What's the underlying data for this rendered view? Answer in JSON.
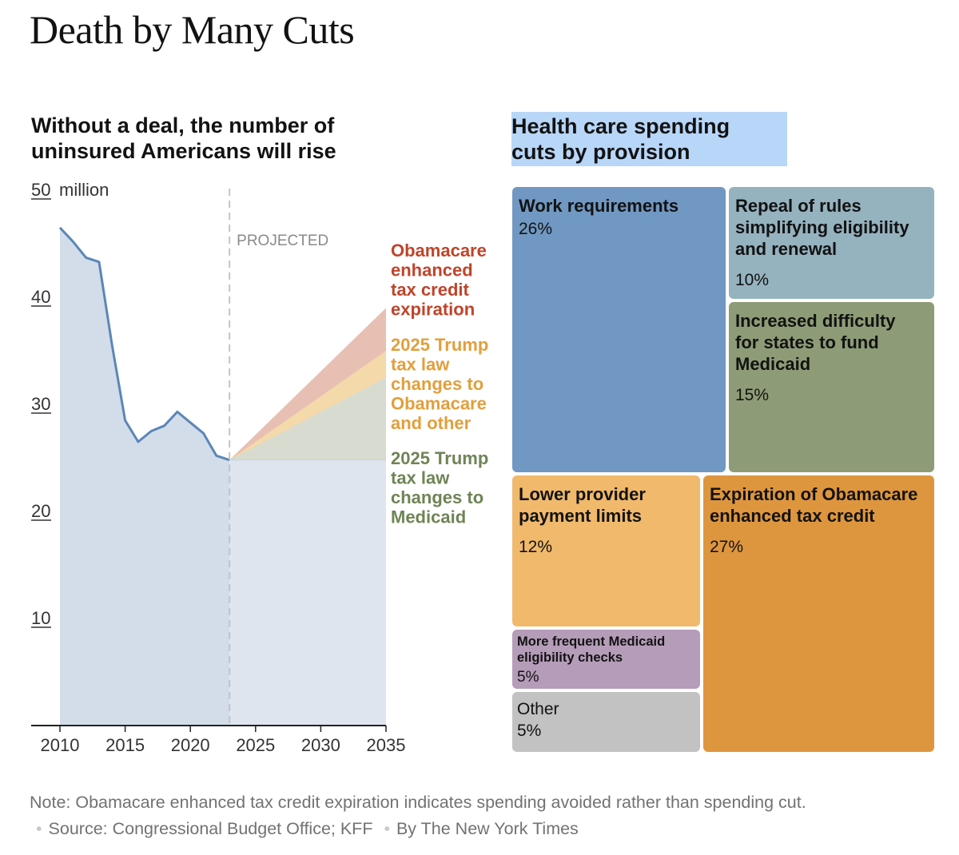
{
  "headline": "Death by Many Cuts",
  "left_title": "Without a deal, the number of uninsured Americans will rise",
  "right_title": [
    "Health care spending",
    "cuts by provision"
  ],
  "colors": {
    "line": "#5b86b8",
    "area_fill": "#d2dde9",
    "projected_fill": "#dee5ef",
    "obamacare_band": "#e8bfb3",
    "trump_obamacare_band": "#f4d9ab",
    "trump_medicaid_band": "#d8dcd0",
    "obamacare_label": "#c0442a",
    "trump_obamacare_label": "#e29f3c",
    "trump_medicaid_label": "#6f8455"
  },
  "chart_data": [
    {
      "type": "area",
      "title": "Without a deal, the number of uninsured Americans will rise",
      "y_unit_label": "million",
      "ylim": [
        0,
        50
      ],
      "y_ticks": [
        10,
        20,
        30,
        40,
        50
      ],
      "xlim": [
        2010,
        2035
      ],
      "x_ticks": [
        2010,
        2015,
        2020,
        2025,
        2030,
        2035
      ],
      "projected_start": 2023,
      "projected_label": "PROJECTED",
      "history": {
        "x": [
          2010,
          2011,
          2012,
          2013,
          2014,
          2015,
          2016,
          2017,
          2018,
          2019,
          2020,
          2021,
          2022,
          2023
        ],
        "y": [
          46.5,
          45.2,
          43.7,
          43.3,
          35.5,
          28.5,
          26.5,
          27.5,
          28.0,
          29.3,
          28.3,
          27.3,
          25.2,
          24.8
        ]
      },
      "projection_bands": [
        {
          "name": "2025 Trump tax law changes to Medicaid",
          "start": 24.8,
          "end": 32.5
        },
        {
          "name": "2025 Trump tax law changes to Obamacare and other",
          "start": 24.8,
          "end": 35.0
        },
        {
          "name": "Obamacare enhanced tax credit expiration",
          "start": 24.8,
          "end": 39.0
        }
      ],
      "annotations": {
        "obamacare": [
          "Obamacare",
          "enhanced",
          "tax credit",
          "expiration"
        ],
        "trump_obamacare": [
          "2025 Trump",
          "tax law",
          "changes to",
          "Obamacare",
          "and other"
        ],
        "trump_medicaid": [
          "2025 Trump",
          "tax law",
          "changes to",
          "Medicaid"
        ]
      }
    },
    {
      "type": "treemap",
      "title": "Health care spending cuts by provision",
      "items": [
        {
          "name": "Work requirements",
          "percent": "26%",
          "value": 26,
          "color": "#7098c2"
        },
        {
          "name": "Repeal of rules simplifying eligibility and renewal",
          "percent": "10%",
          "value": 10,
          "color": "#95b2bf"
        },
        {
          "name": "Increased difficulty for states to fund Medicaid",
          "percent": "15%",
          "value": 15,
          "color": "#8d9c76"
        },
        {
          "name": "Lower provider payment limits",
          "percent": "12%",
          "value": 12,
          "color": "#f0b96b"
        },
        {
          "name": "Expiration of Obamacare enhanced tax credit",
          "percent": "27%",
          "value": 27,
          "color": "#de963e"
        },
        {
          "name": "More frequent Medicaid eligibility checks",
          "percent": "5%",
          "value": 5,
          "color": "#b59cb9"
        },
        {
          "name": "Other",
          "percent": "5%",
          "value": 5,
          "color": "#c2c2c2"
        }
      ]
    }
  ],
  "footer": {
    "note": "Note: Obamacare enhanced tax credit expiration indicates spending avoided rather than spending cut.",
    "source": "Source: Congressional Budget Office; KFF",
    "byline": "By The New York Times"
  }
}
